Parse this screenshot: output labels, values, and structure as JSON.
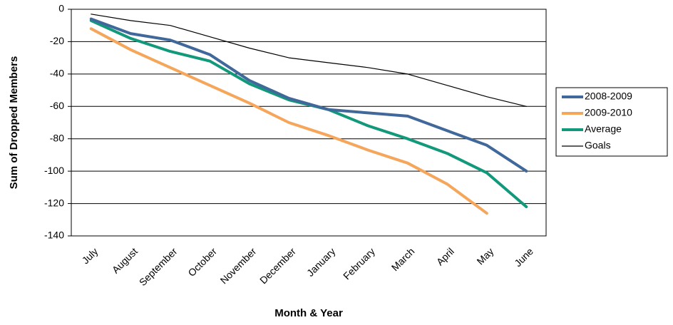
{
  "chart_data": {
    "type": "line",
    "x_label": "Month & Year",
    "y_label": "Sum of Dropped Members",
    "categories": [
      "July",
      "August",
      "September",
      "October",
      "November",
      "December",
      "January",
      "February",
      "March",
      "April",
      "May",
      "June"
    ],
    "series": [
      {
        "name": "2008-2009",
        "color": "#41689a",
        "width": 4,
        "values": [
          -6,
          -15,
          -19,
          -28,
          -44,
          -55,
          -62,
          -64,
          -66,
          -75,
          -84,
          -100
        ]
      },
      {
        "name": "2009-2010",
        "color": "#f5a65b",
        "width": 4,
        "values": [
          -12,
          -25,
          -36,
          -47,
          -58,
          -70,
          -78,
          -87,
          -95,
          -108,
          -126,
          null
        ]
      },
      {
        "name": "Average",
        "color": "#12987a",
        "width": 4,
        "values": [
          -7,
          -18,
          -26,
          -32,
          -46,
          -56,
          -62,
          -72,
          -80,
          -89,
          -101,
          -122
        ]
      },
      {
        "name": "Goals",
        "color": "#000000",
        "width": 1.2,
        "values": [
          -3,
          -7,
          -10,
          -17,
          -24,
          -30,
          -33,
          -36,
          -40,
          -47,
          -54,
          -60
        ]
      }
    ],
    "ylim": [
      -140,
      0
    ],
    "yticks": [
      0,
      -20,
      -40,
      -60,
      -80,
      -100,
      -120,
      -140
    ],
    "grid": true,
    "legend": "right"
  }
}
